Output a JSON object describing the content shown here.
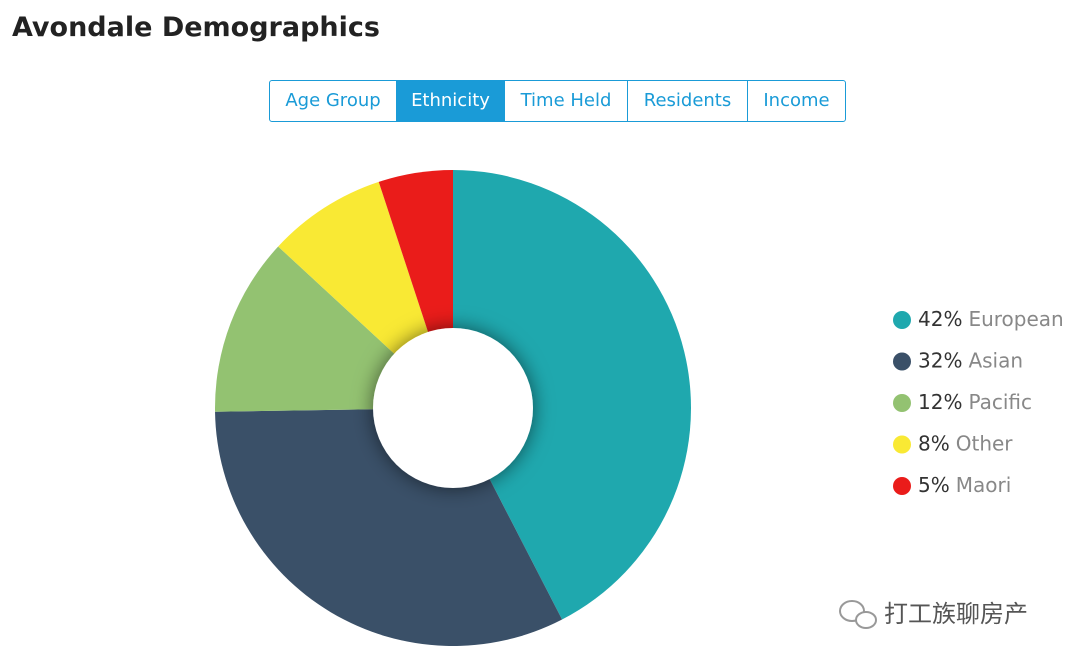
{
  "header": {
    "title": "Avondale Demographics"
  },
  "tabs": {
    "items": [
      "Age Group",
      "Ethnicity",
      "Time Held",
      "Residents",
      "Income"
    ],
    "active": 1
  },
  "chart_data": {
    "type": "donut",
    "categories": [
      "European",
      "Asian",
      "Pacific",
      "Other",
      "Maori"
    ],
    "values": [
      42,
      32,
      12,
      8,
      5
    ],
    "value_labels": [
      "42%",
      "32%",
      "12%",
      "8%",
      "5%"
    ],
    "colors": [
      "#1fa8ae",
      "#3a5068",
      "#93c271",
      "#f9e934",
      "#ea1c1a"
    ],
    "legend": "right"
  },
  "watermark": "打工族聊房产"
}
